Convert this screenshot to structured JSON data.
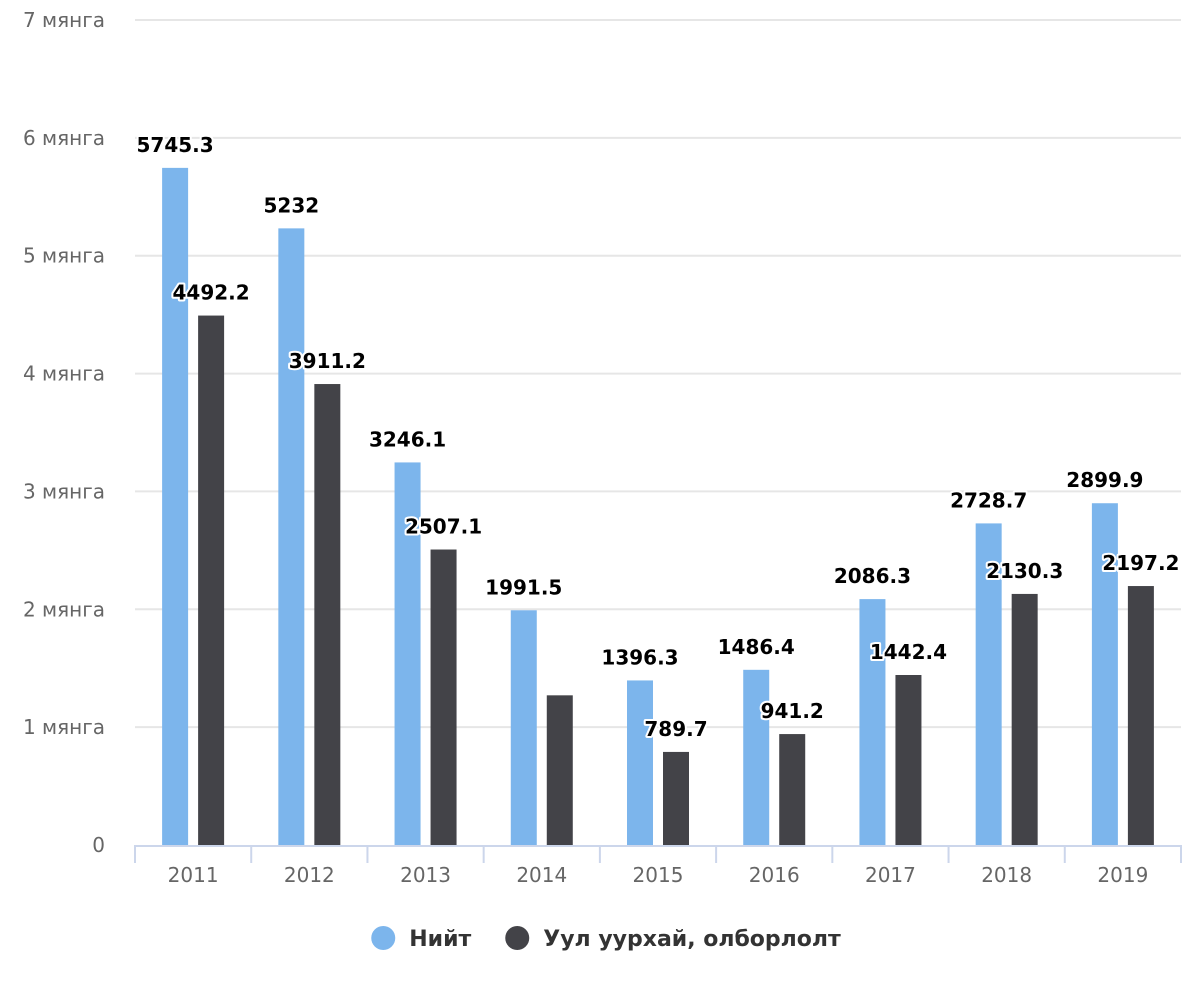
{
  "chart_data": {
    "type": "bar",
    "title": "",
    "xlabel": "",
    "ylabel": "",
    "categories": [
      "2011",
      "2012",
      "2013",
      "2014",
      "2015",
      "2016",
      "2017",
      "2018",
      "2019"
    ],
    "series": [
      {
        "name": "Нийт",
        "color": "#7cb5ec",
        "values": [
          5745.3,
          5232,
          3246.1,
          1991.5,
          1396.3,
          1486.4,
          2086.3,
          2728.7,
          2899.9
        ],
        "data_labels": [
          "5745.3",
          "5232",
          "3246.1",
          "1991.5",
          "1396.3",
          "1486.4",
          "2086.3",
          "2728.7",
          "2899.9"
        ]
      },
      {
        "name": "Уул уурхай, олборлолт",
        "color": "#434348",
        "values": [
          4492.2,
          3911.2,
          2507.1,
          1270,
          789.7,
          941.2,
          1442.4,
          2130.3,
          2197.2
        ],
        "data_labels": [
          "4492.2",
          "3911.2",
          "2507.1",
          "",
          "789.7",
          "941.2",
          "1442.4",
          "2130.3",
          "2197.2"
        ]
      }
    ],
    "ylim": [
      0,
      7000
    ],
    "yticks": [
      0,
      1000,
      2000,
      3000,
      4000,
      5000,
      6000,
      7000
    ],
    "ytick_labels": [
      "0",
      "1 мянга",
      "2 мянга",
      "3 мянга",
      "4 мянга",
      "5 мянга",
      "6 мянга",
      "7 мянга"
    ],
    "grid": true,
    "legend_position": "bottom-center"
  }
}
